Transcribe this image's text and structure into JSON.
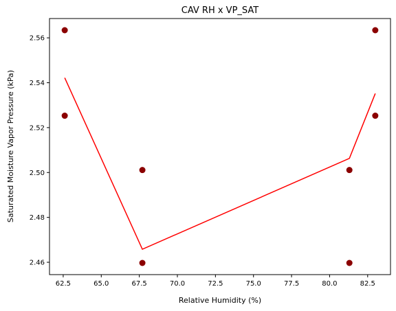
{
  "chart_data": {
    "type": "scatter",
    "title": "CAV RH x VP_SAT",
    "xlabel": "Relative Humidity (%)",
    "ylabel": "Saturated Moisture Vapor Pressure (kPa)",
    "xlim": [
      61.6,
      84.0
    ],
    "ylim": [
      2.4545,
      2.5686
    ],
    "xticks": [
      62.5,
      65.0,
      67.5,
      70.0,
      72.5,
      75.0,
      77.5,
      80.0,
      82.5
    ],
    "xtick_labels": [
      "62.5",
      "65.0",
      "67.5",
      "70.0",
      "72.5",
      "75.0",
      "77.5",
      "80.0",
      "82.5"
    ],
    "yticks": [
      2.46,
      2.48,
      2.5,
      2.52,
      2.54,
      2.56
    ],
    "ytick_labels": [
      "2.46",
      "2.48",
      "2.50",
      "2.52",
      "2.54",
      "2.56"
    ],
    "grid": false,
    "series": [
      {
        "kind": "scatter",
        "color": "#8b0000",
        "points": [
          {
            "x": 62.6,
            "y": 2.5634
          },
          {
            "x": 62.6,
            "y": 2.5253
          },
          {
            "x": 67.7,
            "y": 2.5011
          },
          {
            "x": 67.7,
            "y": 2.4597
          },
          {
            "x": 81.3,
            "y": 2.5011
          },
          {
            "x": 81.3,
            "y": 2.4597
          },
          {
            "x": 83.0,
            "y": 2.5634
          },
          {
            "x": 83.0,
            "y": 2.5253
          }
        ]
      },
      {
        "kind": "line",
        "color": "#ff0000",
        "points": [
          {
            "x": 62.6,
            "y": 2.5422
          },
          {
            "x": 67.7,
            "y": 2.4658
          },
          {
            "x": 81.3,
            "y": 2.5063
          },
          {
            "x": 83.0,
            "y": 2.5352
          }
        ]
      }
    ]
  }
}
